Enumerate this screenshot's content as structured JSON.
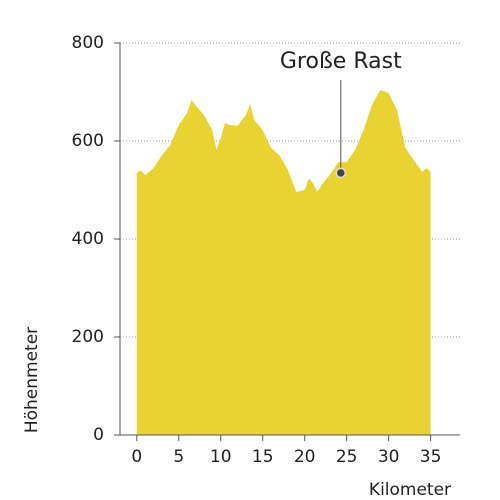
{
  "chart_data": {
    "type": "area",
    "x": [
      0,
      0.5,
      1,
      2,
      3,
      4,
      5,
      6,
      6.5,
      7,
      8,
      9,
      9.5,
      10,
      10.5,
      11,
      12,
      13,
      13.5,
      14,
      15,
      16,
      17,
      18,
      19,
      20,
      20.5,
      21,
      21.5,
      22,
      23,
      24,
      25,
      26,
      27,
      28,
      29,
      30,
      31,
      32,
      33,
      34,
      34.5,
      35
    ],
    "values": [
      535,
      540,
      530,
      545,
      571,
      592,
      633,
      657,
      684,
      673,
      653,
      622,
      582,
      606,
      637,
      633,
      631,
      653,
      675,
      643,
      622,
      586,
      571,
      541,
      496,
      500,
      524,
      514,
      496,
      510,
      531,
      557,
      557,
      582,
      622,
      673,
      704,
      698,
      663,
      586,
      561,
      537,
      545,
      537
    ],
    "color": "#e9d332",
    "xlim": [
      -2,
      38.5
    ],
    "xticks": [
      0,
      5,
      10,
      15,
      20,
      25,
      30,
      35
    ],
    "ylim": [
      0,
      800
    ],
    "yticks": [
      0,
      200,
      400,
      600,
      800
    ],
    "grid": true,
    "xlabel": "Kilometer",
    "ylabel": "Höhenmeter",
    "annotation": {
      "text": "Große Rast",
      "x": 24.3,
      "y": 535
    }
  }
}
